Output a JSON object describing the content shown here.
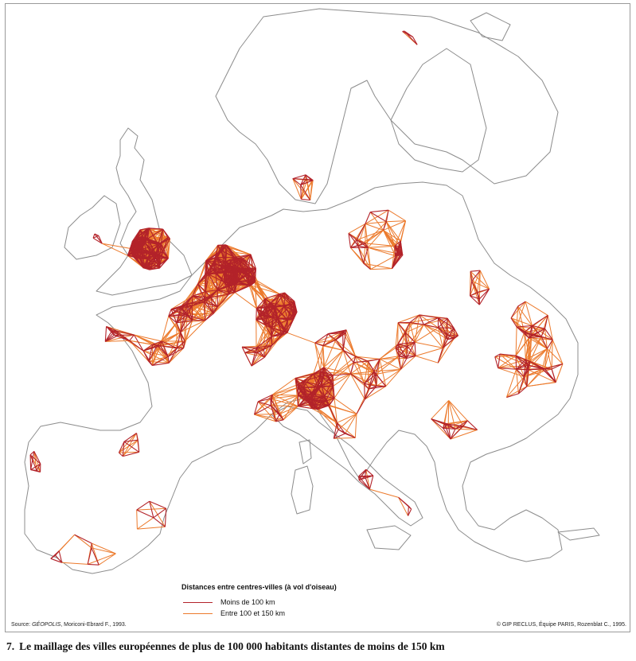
{
  "legend": {
    "title": "Distances entre centres-villes (à vol d'oiseau)",
    "items": [
      {
        "label": "Moins de 100 km",
        "color": "#b3232a"
      },
      {
        "label": "Entre 100 et 150 km",
        "color": "#ec7a2c"
      }
    ]
  },
  "footer": {
    "source_prefix": "Source: ",
    "source_italic": "GÉOPOLIS",
    "source_rest": ", Moriconi-Ebrard F., 1993.",
    "copyright": "© GIP RECLUS, Équipe PARIS, Rozenblat C., 1995."
  },
  "caption": {
    "number": "7.",
    "text": "Le maillage des villes européennes de plus de 100 000 habitants distantes de moins de 150 km"
  },
  "colors": {
    "coast": "#8c8c8c",
    "short": "#b3232a",
    "long": "#ec7a2c"
  }
}
